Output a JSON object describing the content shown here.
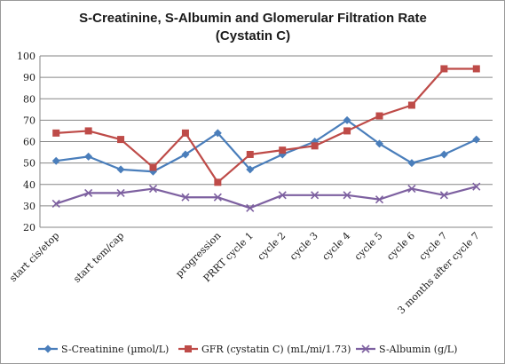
{
  "chart_data": {
    "type": "line",
    "title": "S-Creatinine, S-Albumin and Glomerular Filtration Rate",
    "subtitle": "(Cystatin C)",
    "xlabel": "",
    "ylabel": "",
    "ylim": [
      20,
      100
    ],
    "yticks": [
      20,
      30,
      40,
      50,
      60,
      70,
      80,
      90,
      100
    ],
    "grid": true,
    "legend_position": "bottom",
    "categories": [
      "start cis/etop",
      "",
      "start tem/cap",
      "",
      "",
      "progression",
      "PRRT cycle 1",
      "cycle 2",
      "cycle 3",
      "cycle 4",
      "cycle 5",
      "cycle 6",
      "cycle 7",
      "3 months after cycle 7"
    ],
    "series": [
      {
        "name": "S-Creatinine (µmol/L)",
        "color": "#4a7ebb",
        "marker": "diamond",
        "values": [
          51,
          53,
          47,
          46,
          54,
          64,
          47,
          54,
          60,
          70,
          59,
          50,
          54,
          61
        ]
      },
      {
        "name": "GFR (cystatin C) (mL/mi/1.73)",
        "color": "#be4b48",
        "marker": "square",
        "values": [
          64,
          65,
          61,
          48,
          64,
          41,
          54,
          56,
          58,
          65,
          72,
          77,
          94,
          94
        ]
      },
      {
        "name": "S-Albumin (g/L)",
        "color": "#7d60a0",
        "marker": "x",
        "values": [
          31,
          36,
          36,
          38,
          34,
          34,
          29,
          35,
          35,
          35,
          33,
          38,
          35,
          39
        ]
      }
    ]
  }
}
